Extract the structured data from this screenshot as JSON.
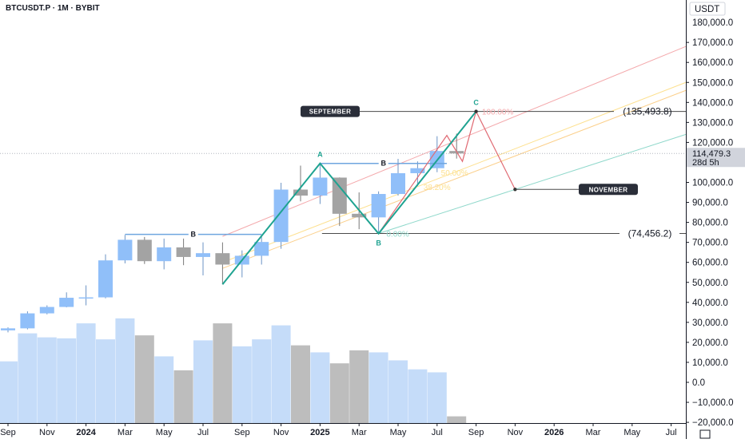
{
  "header": {
    "symbol": "BTCUSDT.P · 1M · BYBIT"
  },
  "colors": {
    "bull": "#90bff9",
    "bear": "#a3a3a3",
    "vol_bull": "#c5dcf9",
    "vol_bear": "#bdbdbd",
    "wave": "#1fa391",
    "alt_path": "#e06a73",
    "line_blue": "#6fa6df",
    "line_dark": "#4a4a4a",
    "channel_upper": "#f4a8ab",
    "channel_mid1": "#fde08e",
    "channel_mid2": "#fbcf8a",
    "channel_lower": "#8fd8cb",
    "callout_bg": "#2a2e39",
    "price_tag_bg": "#d1d4dc"
  },
  "chart_data": {
    "type": "candlestick",
    "title": "BTCUSDT.P · 1M · BYBIT",
    "y_axis_unit": "USDT",
    "ylim": [
      -20000,
      190000
    ],
    "y_ticks": [
      180000,
      170000,
      160000,
      150000,
      140000,
      130000,
      120000,
      110000,
      100000,
      90000,
      80000,
      70000,
      60000,
      50000,
      40000,
      30000,
      20000,
      10000,
      0,
      -10000,
      -20000
    ],
    "y_tick_labels": [
      "180,000.0",
      "170,000.0",
      "160,000.0",
      "150,000.0",
      "140,000.0",
      "130,000.0",
      "120,000.0",
      "110,000.0",
      "100,000.0",
      "90,000.0",
      "80,000.0",
      "70,000.0",
      "60,000.0",
      "50,000.0",
      "40,000.0",
      "30,000.0",
      "20,000.0",
      "10,000.0",
      "0.0",
      "−10,000.0",
      "−20,000.0"
    ],
    "x_ticks": [
      {
        "label": "Sep",
        "month": 0,
        "bold": false
      },
      {
        "label": "Nov",
        "month": 2,
        "bold": false
      },
      {
        "label": "2024",
        "month": 4,
        "bold": true
      },
      {
        "label": "Mar",
        "month": 6,
        "bold": false
      },
      {
        "label": "May",
        "month": 8,
        "bold": false
      },
      {
        "label": "Jul",
        "month": 10,
        "bold": false
      },
      {
        "label": "Sep",
        "month": 12,
        "bold": false
      },
      {
        "label": "Nov",
        "month": 14,
        "bold": false
      },
      {
        "label": "2025",
        "month": 16,
        "bold": true
      },
      {
        "label": "Mar",
        "month": 18,
        "bold": false
      },
      {
        "label": "May",
        "month": 20,
        "bold": false
      },
      {
        "label": "Jul",
        "month": 22,
        "bold": false
      },
      {
        "label": "Sep",
        "month": 24,
        "bold": false
      },
      {
        "label": "Nov",
        "month": 26,
        "bold": false
      },
      {
        "label": "2026",
        "month": 28,
        "bold": true
      },
      {
        "label": "Mar",
        "month": 30,
        "bold": false
      },
      {
        "label": "May",
        "month": 32,
        "bold": false
      },
      {
        "label": "Jul",
        "month": 34,
        "bold": false
      }
    ],
    "candles": [
      {
        "m": 0,
        "o": 26000,
        "h": 27500,
        "l": 25000,
        "c": 27000
      },
      {
        "m": 1,
        "o": 27000,
        "h": 35500,
        "l": 26500,
        "c": 34500
      },
      {
        "m": 2,
        "o": 34500,
        "h": 38500,
        "l": 34000,
        "c": 37700
      },
      {
        "m": 3,
        "o": 37700,
        "h": 45000,
        "l": 37500,
        "c": 42300
      },
      {
        "m": 4,
        "o": 42300,
        "h": 48500,
        "l": 38500,
        "c": 42500
      },
      {
        "m": 5,
        "o": 42500,
        "h": 64000,
        "l": 42000,
        "c": 61000
      },
      {
        "m": 6,
        "o": 61000,
        "h": 73700,
        "l": 59500,
        "c": 71300
      },
      {
        "m": 7,
        "o": 71300,
        "h": 72700,
        "l": 59200,
        "c": 60600
      },
      {
        "m": 8,
        "o": 60600,
        "h": 71900,
        "l": 56500,
        "c": 67500
      },
      {
        "m": 9,
        "o": 67500,
        "h": 71900,
        "l": 58600,
        "c": 62700
      },
      {
        "m": 10,
        "o": 62700,
        "h": 70000,
        "l": 53500,
        "c": 64600
      },
      {
        "m": 11,
        "o": 64600,
        "h": 70000,
        "l": 49000,
        "c": 58900
      },
      {
        "m": 12,
        "o": 58900,
        "h": 66000,
        "l": 52500,
        "c": 63300
      },
      {
        "m": 13,
        "o": 63300,
        "h": 73600,
        "l": 58900,
        "c": 70200
      },
      {
        "m": 14,
        "o": 70200,
        "h": 99800,
        "l": 66800,
        "c": 96400
      },
      {
        "m": 15,
        "o": 96400,
        "h": 108400,
        "l": 90500,
        "c": 93400
      },
      {
        "m": 16,
        "o": 93400,
        "h": 109500,
        "l": 89200,
        "c": 102400
      },
      {
        "m": 17,
        "o": 102400,
        "h": 102500,
        "l": 78200,
        "c": 84300
      },
      {
        "m": 18,
        "o": 84300,
        "h": 95000,
        "l": 76600,
        "c": 82500
      },
      {
        "m": 19,
        "o": 82500,
        "h": 95500,
        "l": 74400,
        "c": 94200
      },
      {
        "m": 20,
        "o": 94200,
        "h": 111800,
        "l": 93400,
        "c": 104600
      },
      {
        "m": 21,
        "o": 104600,
        "h": 110500,
        "l": 98200,
        "c": 107100
      },
      {
        "m": 22,
        "o": 107100,
        "h": 123100,
        "l": 105100,
        "c": 115700
      },
      {
        "m": 23,
        "o": 115700,
        "h": 124400,
        "l": 111900,
        "c": 114479
      }
    ],
    "volume": [
      {
        "m": 0,
        "v": 10500
      },
      {
        "m": 1,
        "v": 24500
      },
      {
        "m": 2,
        "v": 22500
      },
      {
        "m": 3,
        "v": 22000
      },
      {
        "m": 4,
        "v": 29500
      },
      {
        "m": 5,
        "v": 21500
      },
      {
        "m": 6,
        "v": 32000
      },
      {
        "m": 7,
        "v": 23500
      },
      {
        "m": 8,
        "v": 13000
      },
      {
        "m": 9,
        "v": 6000
      },
      {
        "m": 10,
        "v": 21000
      },
      {
        "m": 11,
        "v": 29500
      },
      {
        "m": 12,
        "v": 18000
      },
      {
        "m": 13,
        "v": 21500
      },
      {
        "m": 14,
        "v": 28500
      },
      {
        "m": 15,
        "v": 18500
      },
      {
        "m": 16,
        "v": 15000
      },
      {
        "m": 17,
        "v": 9500
      },
      {
        "m": 18,
        "v": 16000
      },
      {
        "m": 19,
        "v": 15000
      },
      {
        "m": 20,
        "v": 11000
      },
      {
        "m": 21,
        "v": 6500
      },
      {
        "m": 22,
        "v": 5000
      },
      {
        "m": 23,
        "v": -18000
      }
    ],
    "wave_path": [
      {
        "m": 11,
        "p": 49000
      },
      {
        "m": 16,
        "p": 109500
      },
      {
        "m": 19,
        "p": 74400
      },
      {
        "m": 24,
        "p": 135493.8
      }
    ],
    "wave_labels": [
      {
        "text": "A",
        "m": 16,
        "p": 109500,
        "pos": "above"
      },
      {
        "text": "B",
        "m": 19,
        "p": 74400,
        "pos": "below"
      },
      {
        "text": "C",
        "m": 24,
        "p": 135493.8,
        "pos": "above"
      }
    ],
    "alt_path": [
      {
        "m": 19,
        "p": 74456.2
      },
      {
        "m": 22.5,
        "p": 123500
      },
      {
        "m": 23.3,
        "p": 110500
      },
      {
        "m": 24,
        "p": 135493.8
      },
      {
        "m": 26,
        "p": 96500
      }
    ],
    "b_lines": [
      {
        "m1": 6,
        "m2": 13,
        "p": 74000,
        "label": "B"
      },
      {
        "m1": 16,
        "m2": 22.5,
        "p": 109500,
        "label": "B"
      }
    ],
    "fib_levels": [
      {
        "label": "100.00%",
        "m": 24.3,
        "p": 135493.8,
        "color": "#f4a8ab"
      },
      {
        "label": "50.00%",
        "m": 22.2,
        "p": 104900,
        "color": "#fde08e"
      },
      {
        "label": "38.20%",
        "m": 21.3,
        "p": 97800,
        "color": "#fde08e"
      },
      {
        "label": "0.00%",
        "m": 19.4,
        "p": 74456.2,
        "color": "#8fd8cb"
      }
    ],
    "channels": [
      {
        "m1": 11,
        "p1": 73000,
        "m2": 34.8,
        "p2": 168000,
        "key": "channel_upper"
      },
      {
        "m1": 11,
        "p1": 60000,
        "m2": 34.8,
        "p2": 150000,
        "key": "channel_mid1"
      },
      {
        "m1": 11,
        "p1": 57000,
        "m2": 34.8,
        "p2": 146000,
        "key": "channel_mid2"
      },
      {
        "m1": 19,
        "p1": 74456.2,
        "m2": 34.8,
        "p2": 124000,
        "key": "channel_lower"
      }
    ],
    "target_high": {
      "value": 135493.8,
      "label": "(135,493.8)"
    },
    "target_low": {
      "value": 74456.2,
      "label": "(74,456.2)"
    },
    "callouts": [
      {
        "text": "SEPTEMBER",
        "m": 24,
        "p": 135493.8,
        "side": "left"
      },
      {
        "text": "NOVEMBER",
        "m": 26,
        "p": 96500,
        "side": "right"
      }
    ],
    "current_price": {
      "value": 114479.3,
      "label": "114,479.3",
      "countdown": "28d 5h"
    }
  }
}
